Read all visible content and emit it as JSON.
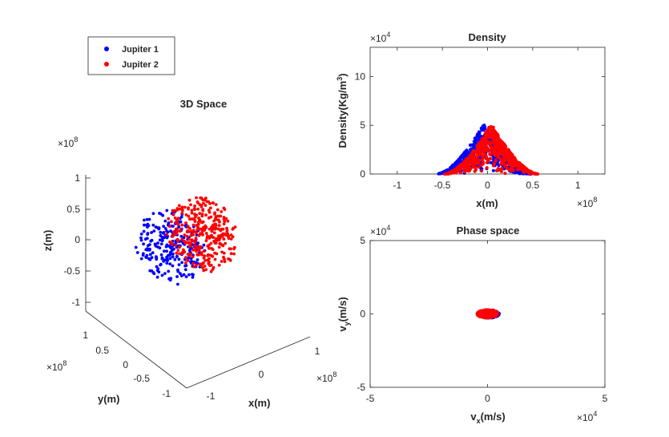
{
  "legend": {
    "entries": [
      {
        "name": "Jupiter 1",
        "color": "#0000ff"
      },
      {
        "name": "Jupiter 2",
        "color": "#ff0000"
      }
    ]
  },
  "chart_data": [
    {
      "type": "scatter",
      "title": "3D Space",
      "xlabel": "x(m)",
      "ylabel": "y(m)",
      "zlabel": "z(m)",
      "multiplier": "×10",
      "exponent": "8",
      "xlim": [
        -1.2,
        1.2
      ],
      "ylim": [
        -1.2,
        1.2
      ],
      "zlim": [
        -1.2,
        1.2
      ],
      "xticks": [
        "-1",
        "0",
        "1"
      ],
      "yticks": [
        "-1",
        "-0.5",
        "0",
        "0.5",
        "1"
      ],
      "zticks": [
        "-1",
        "-0.5",
        "0",
        "0.5",
        "1"
      ],
      "series": [
        {
          "name": "Jupiter 1",
          "color": "#0000ff",
          "center": [
            -0.3,
            0,
            0
          ],
          "radius": 0.5,
          "count": 260
        },
        {
          "name": "Jupiter 2",
          "color": "#ff0000",
          "center": [
            0.3,
            0,
            0
          ],
          "radius": 0.5,
          "count": 330
        }
      ]
    },
    {
      "type": "scatter",
      "title": "Density",
      "xlabel": "x(m)",
      "ylabel": "Density(Kg/m",
      "ylabel_sup": "3",
      "ylabel_tail": ")",
      "x_multiplier": "×10",
      "x_exponent": "8",
      "y_multiplier": "×10",
      "y_exponent": "4",
      "xlim": [
        -1.3,
        1.3
      ],
      "ylim": [
        0,
        13
      ],
      "xticks": [
        "-1",
        "-0.5",
        "0",
        "0.5",
        "1"
      ],
      "yticks": [
        "0",
        "5",
        "10"
      ],
      "series": [
        {
          "name": "Jupiter 1",
          "color": "#0000ff",
          "center": -0.04,
          "extent": 0.52,
          "peak": 5.2,
          "count": 520
        },
        {
          "name": "Jupiter 2",
          "color": "#ff0000",
          "center": 0.04,
          "extent": 0.52,
          "peak": 5.2,
          "count": 620
        }
      ]
    },
    {
      "type": "scatter",
      "title": "Phase space",
      "xlabel": "v",
      "xlabel_sub": "x",
      "xlabel_tail": "(m/s)",
      "ylabel": "v",
      "ylabel_sub": "y",
      "ylabel_tail": "(m/s)",
      "x_multiplier": "×10",
      "x_exponent": "4",
      "y_multiplier": "×10",
      "y_exponent": "4",
      "xlim": [
        -5,
        5
      ],
      "ylim": [
        -5,
        5
      ],
      "xticks": [
        "-5",
        "0",
        "5"
      ],
      "yticks": [
        "-5",
        "0",
        "5"
      ],
      "series": [
        {
          "name": "Jupiter 1",
          "color": "#0000ff",
          "center": [
            0.05,
            0
          ],
          "spread": [
            0.45,
            0.28
          ],
          "count": 260
        },
        {
          "name": "Jupiter 2",
          "color": "#ff0000",
          "center": [
            0,
            0
          ],
          "spread": [
            0.45,
            0.28
          ],
          "count": 330
        }
      ]
    }
  ]
}
